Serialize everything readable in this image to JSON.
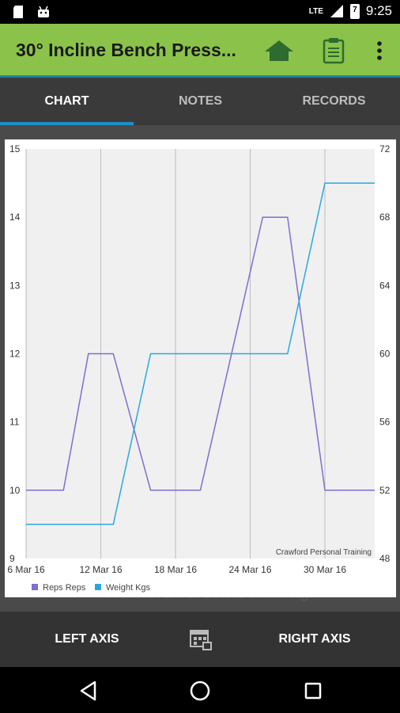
{
  "status": {
    "network": "LTE",
    "battery_level": "7",
    "time": "9:25"
  },
  "appbar": {
    "title": "30° Incline Bench Press..."
  },
  "tabs": [
    {
      "label": "CHART",
      "active": true
    },
    {
      "label": "NOTES",
      "active": false
    },
    {
      "label": "RECORDS",
      "active": false
    }
  ],
  "background_text": "Crawford Personal Training",
  "bottom": {
    "left_label": "LEFT AXIS",
    "right_label": "RIGHT AXIS"
  },
  "colors": {
    "appbar": "#8bc34a",
    "accent": "#1d8fc7",
    "reps": "#7b6fd0",
    "weight": "#29a8e0"
  },
  "chart_data": {
    "type": "line",
    "x_ticks": [
      "6 Mar 16",
      "12 Mar 16",
      "18 Mar 16",
      "24 Mar 16",
      "30 Mar 16"
    ],
    "left_axis": {
      "ylim": [
        9,
        15
      ],
      "ticks": [
        "15",
        "14",
        "13",
        "12",
        "11",
        "10",
        "9"
      ]
    },
    "right_axis": {
      "ylim": [
        48,
        72
      ],
      "ticks": [
        "72",
        "68",
        "64",
        "60",
        "56",
        "52",
        "48"
      ]
    },
    "series": [
      {
        "name": "Reps Reps",
        "axis": "left",
        "color": "#7b6fd0",
        "points": [
          [
            "6 Mar 16",
            10
          ],
          [
            "9 Mar 16",
            10
          ],
          [
            "11 Mar 16",
            12
          ],
          [
            "13 Mar 16",
            12
          ],
          [
            "16 Mar 16",
            10
          ],
          [
            "20 Mar 16",
            10
          ],
          [
            "25 Mar 16",
            14
          ],
          [
            "27 Mar 16",
            14
          ],
          [
            "30 Mar 16",
            10
          ],
          [
            "3 Apr 16",
            10
          ]
        ]
      },
      {
        "name": "Weight Kgs",
        "axis": "right",
        "color": "#29a8e0",
        "points": [
          [
            "6 Mar 16",
            50
          ],
          [
            "13 Mar 16",
            50
          ],
          [
            "16 Mar 16",
            60
          ],
          [
            "27 Mar 16",
            60
          ],
          [
            "30 Mar 16",
            70
          ],
          [
            "3 Apr 16",
            70
          ]
        ]
      }
    ],
    "annotation": "Crawford Personal Training",
    "grid": true,
    "legend": "bottom-left"
  }
}
